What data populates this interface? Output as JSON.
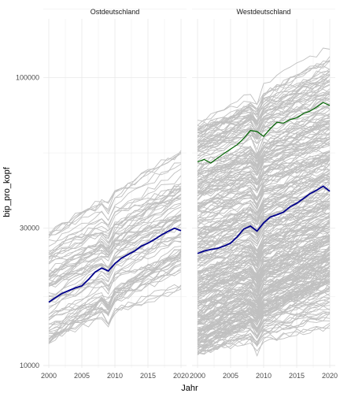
{
  "chart_data": {
    "type": "line",
    "x_label": "Jahr",
    "y_label": "bip_pro_kopf",
    "y_scale": "log",
    "x_range": [
      2000,
      2020
    ],
    "y_range": [
      10000,
      160000
    ],
    "x_ticks": [
      2000,
      2005,
      2010,
      2015,
      2020
    ],
    "y_ticks": [
      10000,
      30000,
      100000
    ],
    "y_tick_labels": [
      "10000",
      "30000",
      "100000"
    ],
    "grid": true,
    "colors": {
      "background_lines": "#c0c0c0",
      "highlight_ost": "#00008b",
      "highlight_west_mean": "#00008b",
      "highlight_west_top": "#006400"
    },
    "panels": [
      {
        "strip": "Ostdeutschland",
        "highlighted": [
          {
            "color": "#00008b",
            "x": [
              2000,
              2001,
              2002,
              2003,
              2004,
              2005,
              2006,
              2007,
              2008,
              2009,
              2010,
              2011,
              2012,
              2013,
              2014,
              2015,
              2016,
              2017,
              2018,
              2019,
              2020
            ],
            "y": [
              16600,
              17200,
              17800,
              18200,
              18600,
              18900,
              19900,
              21100,
              21800,
              21300,
              22600,
              23600,
              24300,
              25000,
              26000,
              26600,
              27400,
              28400,
              29200,
              30000,
              29400
            ]
          }
        ],
        "background_count": 77,
        "background_start_range": [
          12000,
          30000
        ],
        "background_growth": 1.75
      },
      {
        "strip": "Westdeutschland",
        "highlighted": [
          {
            "color": "#006400",
            "x": [
              2000,
              2001,
              2002,
              2003,
              2004,
              2005,
              2006,
              2007,
              2008,
              2009,
              2010,
              2011,
              2012,
              2013,
              2014,
              2015,
              2016,
              2017,
              2018,
              2019,
              2020
            ],
            "y": [
              51000,
              52000,
              50500,
              52500,
              54500,
              56500,
              58500,
              61500,
              65500,
              65000,
              62500,
              66500,
              70000,
              69500,
              71500,
              72500,
              75000,
              76500,
              79000,
              82000,
              80000
            ]
          },
          {
            "color": "#00008b",
            "x": [
              2000,
              2001,
              2002,
              2003,
              2004,
              2005,
              2006,
              2007,
              2008,
              2009,
              2010,
              2011,
              2012,
              2013,
              2014,
              2015,
              2016,
              2017,
              2018,
              2019,
              2020
            ],
            "y": [
              24500,
              25000,
              25300,
              25500,
              26000,
              26600,
              28000,
              29800,
              30500,
              29300,
              31300,
              32800,
              33400,
              34100,
              35600,
              36600,
              38000,
              39500,
              40600,
              42000,
              40300
            ]
          }
        ],
        "background_count": 320,
        "background_start_range": [
          11000,
          70000
        ],
        "background_growth": 1.5
      }
    ]
  }
}
